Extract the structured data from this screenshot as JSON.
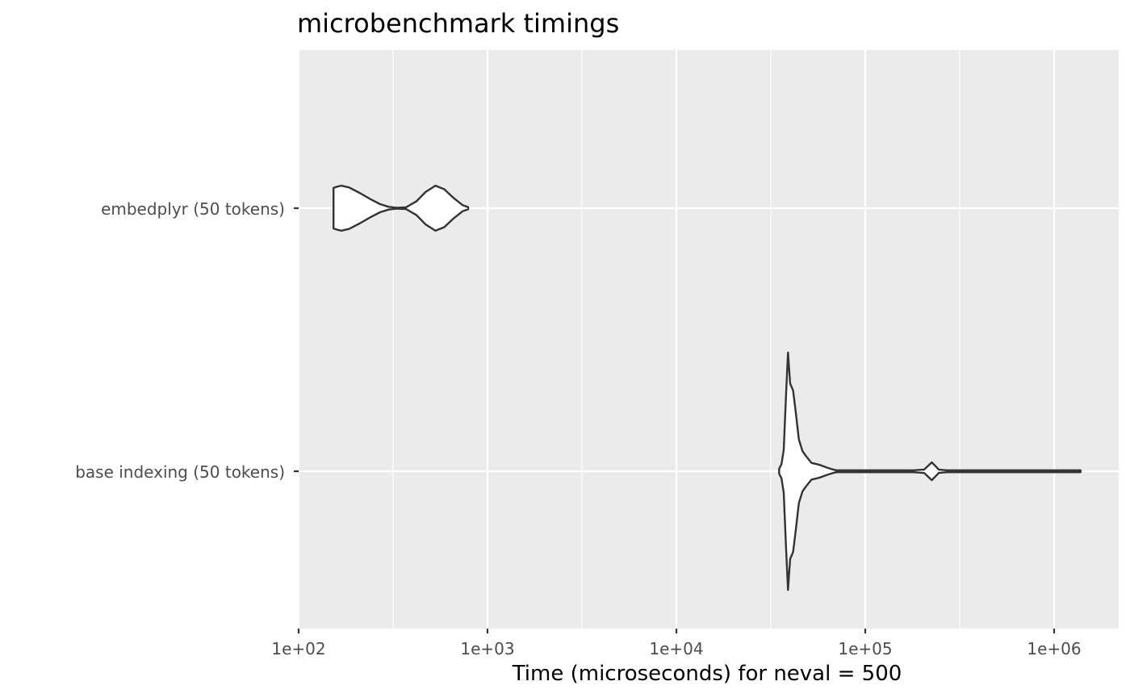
{
  "chart_data": {
    "type": "violin",
    "title": "microbenchmark timings",
    "xlabel": "Time (microseconds) for neval = 500",
    "ylabel": "",
    "x_scale": "log10",
    "xlim": [
      100,
      1600000
    ],
    "x_ticks": [
      100,
      1000,
      10000,
      100000,
      1000000
    ],
    "x_tick_labels": [
      "1e+02",
      "1e+03",
      "1e+04",
      "1e+05",
      "1e+06"
    ],
    "categories": [
      "embedplyr (50 tokens)",
      "base indexing (50 tokens)"
    ],
    "grid": true,
    "legend": "none",
    "colors": {
      "panel_background": "#ebebeb",
      "grid_line": "#ffffff",
      "violin_fill": "#ffffff",
      "violin_outline": "#333333",
      "tick_label": "#4d4d4d"
    },
    "series": [
      {
        "category": "embedplyr (50 tokens)",
        "min": 153,
        "max": 790,
        "density": [
          [
            153,
            0.9
          ],
          [
            158,
            0.94
          ],
          [
            168,
            1.0
          ],
          [
            185,
            0.92
          ],
          [
            210,
            0.68
          ],
          [
            240,
            0.4
          ],
          [
            270,
            0.18
          ],
          [
            300,
            0.06
          ],
          [
            330,
            0.02
          ],
          [
            370,
            0.04
          ],
          [
            420,
            0.3
          ],
          [
            470,
            0.72
          ],
          [
            530,
            1.0
          ],
          [
            590,
            0.84
          ],
          [
            660,
            0.46
          ],
          [
            740,
            0.13
          ],
          [
            790,
            0.05
          ]
        ]
      },
      {
        "category": "base indexing (50 tokens)",
        "min": 35000,
        "max": 1380000,
        "density": [
          [
            35000,
            0.02
          ],
          [
            36000,
            0.06
          ],
          [
            37000,
            0.18
          ],
          [
            38000,
            0.62
          ],
          [
            39000,
            1.0
          ],
          [
            40000,
            0.74
          ],
          [
            41500,
            0.68
          ],
          [
            43000,
            0.48
          ],
          [
            44500,
            0.27
          ],
          [
            46500,
            0.17
          ],
          [
            49000,
            0.12
          ],
          [
            52000,
            0.07
          ],
          [
            57000,
            0.055
          ],
          [
            63000,
            0.03
          ],
          [
            66000,
            0.02
          ],
          [
            70000,
            0.008
          ],
          [
            100000,
            0.008
          ],
          [
            180000,
            0.008
          ],
          [
            205000,
            0.014
          ],
          [
            215000,
            0.045
          ],
          [
            225000,
            0.075
          ],
          [
            235000,
            0.045
          ],
          [
            245000,
            0.014
          ],
          [
            270000,
            0.008
          ],
          [
            500000,
            0.008
          ],
          [
            1000000,
            0.008
          ],
          [
            1380000,
            0.008
          ]
        ]
      }
    ]
  }
}
